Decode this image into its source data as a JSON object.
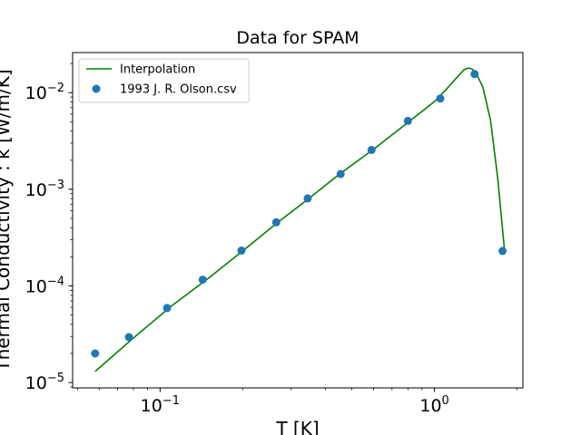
{
  "chart_data": {
    "type": "scatter",
    "title": "Data for SPAM",
    "xlabel": "T [K]",
    "ylabel": "Thermal Conductivity : k [W/m/K]",
    "xscale": "log",
    "yscale": "log",
    "xlim": [
      0.048,
      2.1
    ],
    "ylim": [
      8.8e-06,
      0.026
    ],
    "grid": false,
    "legend_position": "top-left",
    "x_ticks": [
      {
        "value": 0.1,
        "base": "10",
        "exp": "−1"
      },
      {
        "value": 1,
        "base": "10",
        "exp": "0"
      }
    ],
    "y_ticks": [
      {
        "value": 1e-05,
        "base": "10",
        "exp": "−5"
      },
      {
        "value": 0.0001,
        "base": "10",
        "exp": "−4"
      },
      {
        "value": 0.001,
        "base": "10",
        "exp": "−3"
      },
      {
        "value": 0.01,
        "base": "10",
        "exp": "−2"
      }
    ],
    "series": [
      {
        "name": "Interpolation",
        "kind": "line",
        "color": "#008000",
        "x": [
          0.058,
          0.08,
          0.11,
          0.15,
          0.2,
          0.27,
          0.35,
          0.45,
          0.6,
          0.8,
          1.0,
          1.1,
          1.2,
          1.28,
          1.33,
          1.37,
          1.42,
          1.5,
          1.6,
          1.7,
          1.8
        ],
        "y": [
          1.3e-05,
          2.9e-05,
          6.2e-05,
          0.00012,
          0.00023,
          0.00046,
          0.00081,
          0.00143,
          0.0026,
          0.0049,
          0.0081,
          0.0107,
          0.0141,
          0.0172,
          0.018,
          0.0176,
          0.0158,
          0.0115,
          0.0052,
          0.0013,
          0.00023
        ]
      },
      {
        "name": "1993 J. R. Olson.csv",
        "kind": "scatter",
        "color": "#1f77b4",
        "x": [
          0.058,
          0.077,
          0.106,
          0.143,
          0.198,
          0.265,
          0.345,
          0.455,
          0.59,
          0.8,
          1.05,
          1.4,
          1.77
        ],
        "y": [
          2e-05,
          2.95e-05,
          5.9e-05,
          0.000116,
          0.000232,
          0.000455,
          0.000805,
          0.00144,
          0.00255,
          0.0051,
          0.0087,
          0.0156,
          0.00023
        ]
      }
    ]
  }
}
